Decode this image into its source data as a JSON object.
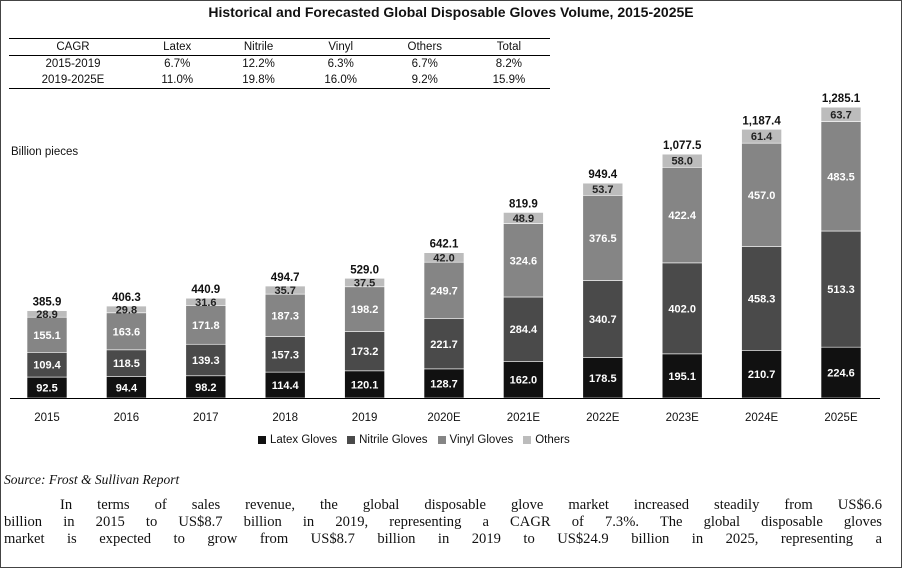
{
  "title": "Historical and Forecasted Global Disposable Gloves Volume, 2015-2025E",
  "cagr_table": {
    "header": [
      "CAGR",
      "Latex",
      "Nitrile",
      "Vinyl",
      "Others",
      "Total"
    ],
    "rows": [
      [
        "2015-2019",
        "6.7%",
        "12.2%",
        "6.3%",
        "6.7%",
        "8.2%"
      ],
      [
        "2019-2025E",
        "11.0%",
        "19.8%",
        "16.0%",
        "9.2%",
        "15.9%"
      ]
    ]
  },
  "chart_data": {
    "type": "bar",
    "stacked": true,
    "ylabel": "Billion pieces",
    "categories": [
      "2015",
      "2016",
      "2017",
      "2018",
      "2019",
      "2020E",
      "2021E",
      "2022E",
      "2023E",
      "2024E",
      "2025E"
    ],
    "series": [
      {
        "name": "Latex Gloves",
        "color": "#111111",
        "values": [
          92.5,
          94.4,
          98.2,
          114.4,
          120.1,
          128.7,
          162.0,
          178.5,
          195.1,
          210.7,
          224.6
        ]
      },
      {
        "name": "Nitrile Gloves",
        "color": "#4a4a4a",
        "values": [
          109.4,
          118.5,
          139.3,
          157.3,
          173.2,
          221.7,
          284.4,
          340.7,
          402.0,
          458.3,
          513.3
        ]
      },
      {
        "name": "Vinyl Gloves",
        "color": "#858585",
        "values": [
          155.1,
          163.6,
          171.8,
          187.3,
          198.2,
          249.7,
          324.6,
          376.5,
          422.4,
          457.0,
          483.5
        ]
      },
      {
        "name": "Others",
        "color": "#bcbcbc",
        "values": [
          28.9,
          29.8,
          31.6,
          35.7,
          37.5,
          42.0,
          48.9,
          53.7,
          58.0,
          61.4,
          63.7
        ]
      }
    ],
    "totals": [
      "385.9",
      "406.3",
      "440.9",
      "494.7",
      "529.0",
      "642.1",
      "819.9",
      "949.4",
      "1,077.5",
      "1,187.4",
      "1,285.1"
    ],
    "legend_position": "bottom",
    "grid": false
  },
  "source": "Source: Frost & Sullivan Report",
  "paragraph_lines": [
    "In terms of sales revenue, the global disposable glove market increased steadily from US$6.6",
    "billion in 2015 to US$8.7 billion in 2019, representing a CAGR of 7.3%. The global disposable gloves",
    "market is expected to grow from US$8.7 billion in 2019 to US$24.9 billion in 2025, representing a"
  ]
}
